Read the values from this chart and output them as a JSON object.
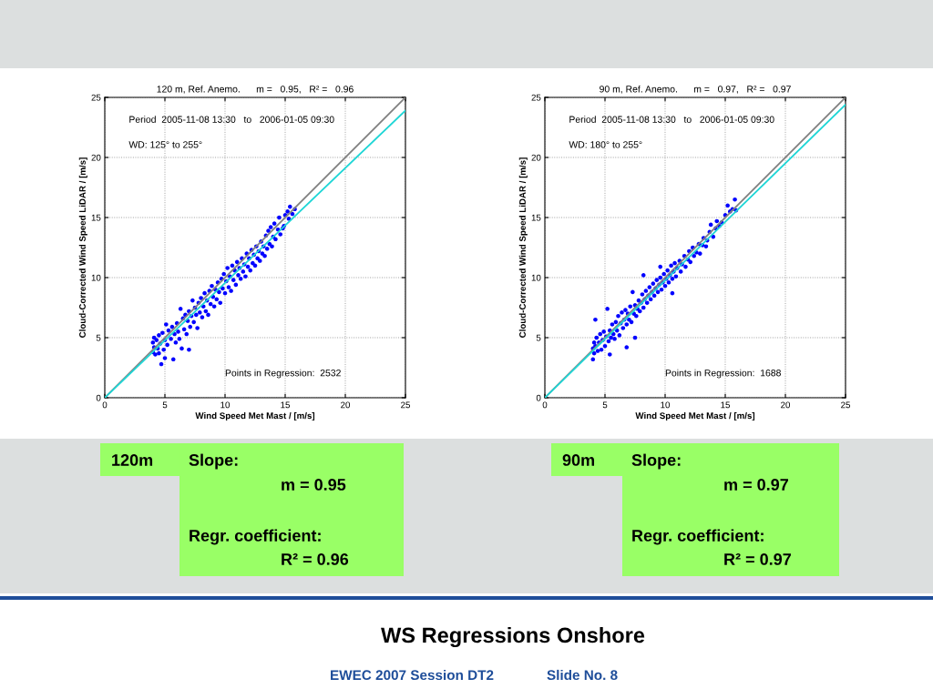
{
  "chart_data": [
    {
      "type": "scatter",
      "title": "120 m, Ref. Anemo.      m =   0.95,   R² =   0.96",
      "xlabel": "Wind Speed Met Mast / [m/s]",
      "ylabel": "Cloud-Corrected Wind Speed LiDAR / [m/s]",
      "xlim": [
        0,
        25
      ],
      "ylim": [
        0,
        25
      ],
      "xticks": [
        0,
        5,
        10,
        15,
        20,
        25
      ],
      "yticks": [
        0,
        5,
        10,
        15,
        20,
        25
      ],
      "grid": true,
      "annotations": [
        "Period  2005-11-08 13:30   to   2006-01-05 09:30",
        "WD: 125° to 255°",
        "Points in Regression:  2532"
      ],
      "series": [
        {
          "type": "scatter",
          "marker": "circle",
          "color": "#0000ff",
          "x": [
            4.0,
            4.0,
            4.1,
            4.1,
            4.2,
            4.3,
            4.4,
            4.5,
            4.5,
            4.6,
            4.7,
            4.8,
            4.9,
            5.0,
            5.0,
            5.1,
            5.2,
            5.3,
            5.5,
            5.6,
            5.7,
            5.8,
            5.9,
            6.0,
            6.1,
            6.2,
            6.3,
            6.4,
            6.5,
            6.6,
            6.7,
            6.8,
            6.9,
            7.0,
            7.0,
            7.1,
            7.2,
            7.3,
            7.4,
            7.5,
            7.6,
            7.7,
            7.8,
            7.9,
            8.0,
            8.1,
            8.2,
            8.3,
            8.4,
            8.5,
            8.6,
            8.7,
            8.8,
            8.9,
            9.0,
            9.1,
            9.2,
            9.3,
            9.4,
            9.5,
            9.6,
            9.7,
            9.8,
            9.9,
            10.0,
            10.1,
            10.2,
            10.3,
            10.4,
            10.5,
            10.6,
            10.7,
            10.8,
            10.9,
            11.0,
            11.1,
            11.2,
            11.3,
            11.4,
            11.5,
            11.6,
            11.7,
            11.8,
            11.9,
            12.0,
            12.1,
            12.2,
            12.3,
            12.4,
            12.5,
            12.6,
            12.7,
            12.8,
            12.9,
            13.0,
            13.1,
            13.2,
            13.3,
            13.4,
            13.5,
            13.6,
            13.7,
            13.8,
            13.9,
            14.0,
            14.1,
            14.2,
            14.4,
            14.5,
            14.6,
            14.8,
            14.9,
            15.0,
            15.2,
            15.3,
            15.4,
            15.6,
            15.8
          ],
          "values": [
            3.8,
            4.6,
            4.2,
            5.0,
            3.6,
            4.8,
            4.1,
            5.2,
            3.7,
            4.5,
            2.8,
            5.4,
            4.0,
            3.3,
            4.8,
            6.1,
            4.4,
            5.6,
            4.9,
            5.9,
            3.2,
            5.3,
            4.6,
            6.2,
            5.5,
            4.9,
            7.4,
            4.1,
            6.6,
            5.7,
            6.9,
            5.3,
            6.4,
            4.0,
            7.2,
            5.9,
            6.8,
            8.1,
            6.3,
            7.5,
            6.9,
            5.8,
            7.9,
            7.1,
            8.3,
            6.7,
            7.6,
            8.7,
            7.2,
            8.1,
            6.9,
            8.9,
            7.8,
            9.3,
            8.4,
            7.6,
            9.0,
            8.2,
            9.6,
            8.8,
            7.9,
            9.9,
            9.1,
            10.3,
            8.7,
            9.7,
            10.8,
            9.2,
            10.1,
            8.9,
            11.0,
            9.8,
            10.6,
            9.4,
            11.3,
            10.2,
            10.8,
            9.9,
            11.6,
            10.5,
            11.1,
            10.1,
            12.0,
            10.9,
            11.6,
            10.6,
            12.3,
            11.2,
            11.9,
            11.0,
            12.6,
            11.6,
            12.2,
            11.4,
            13.0,
            12.0,
            12.6,
            11.8,
            13.5,
            12.4,
            13.9,
            12.8,
            14.2,
            12.6,
            13.4,
            14.5,
            13.2,
            14.0,
            15.0,
            13.6,
            14.1,
            14.3,
            15.2,
            15.5,
            14.9,
            15.9,
            15.3,
            15.7
          ]
        },
        {
          "type": "line",
          "color": "#808080",
          "x": [
            0,
            25
          ],
          "values": [
            0,
            25
          ]
        },
        {
          "type": "line",
          "color": "#1fd6d6",
          "x": [
            0,
            25
          ],
          "values": [
            0,
            23.9
          ]
        }
      ]
    },
    {
      "type": "scatter",
      "title": "90 m, Ref. Anemo.      m =   0.97,   R² =   0.97",
      "xlabel": "Wind Speed Met Mast / [m/s]",
      "ylabel": "Cloud-Corrected Wind Speed LiDAR / [m/s]",
      "xlim": [
        0,
        25
      ],
      "ylim": [
        0,
        25
      ],
      "xticks": [
        0,
        5,
        10,
        15,
        20,
        25
      ],
      "yticks": [
        0,
        5,
        10,
        15,
        20,
        25
      ],
      "grid": true,
      "annotations": [
        "Period  2005-11-08 13:30   to   2006-01-05 09:30",
        "WD: 180° to 255°",
        "Points in Regression:  1688"
      ],
      "series": [
        {
          "type": "scatter",
          "marker": "circle",
          "color": "#0000ff",
          "x": [
            4.0,
            4.0,
            4.1,
            4.1,
            4.2,
            4.2,
            4.3,
            4.4,
            4.5,
            4.6,
            4.7,
            4.8,
            4.9,
            5.0,
            5.1,
            5.2,
            5.3,
            5.4,
            5.4,
            5.5,
            5.6,
            5.7,
            5.8,
            5.9,
            6.0,
            6.1,
            6.2,
            6.3,
            6.4,
            6.5,
            6.6,
            6.7,
            6.8,
            6.8,
            6.9,
            7.0,
            7.1,
            7.2,
            7.3,
            7.4,
            7.5,
            7.5,
            7.6,
            7.7,
            7.8,
            7.9,
            8.0,
            8.1,
            8.2,
            8.2,
            8.3,
            8.4,
            8.5,
            8.6,
            8.7,
            8.8,
            8.9,
            9.0,
            9.1,
            9.2,
            9.3,
            9.4,
            9.5,
            9.6,
            9.6,
            9.7,
            9.8,
            9.9,
            10.0,
            10.1,
            10.2,
            10.3,
            10.4,
            10.5,
            10.6,
            10.6,
            10.7,
            10.8,
            10.9,
            11.0,
            11.2,
            11.3,
            11.4,
            11.6,
            11.7,
            11.9,
            12.0,
            12.1,
            12.3,
            12.4,
            12.6,
            12.8,
            12.9,
            13.1,
            13.2,
            13.4,
            13.5,
            13.7,
            13.8,
            14.0,
            14.2,
            14.3,
            14.5,
            14.7,
            15.0,
            15.2,
            15.4,
            15.6,
            15.8,
            15.9
          ],
          "values": [
            3.2,
            4.1,
            4.6,
            3.7,
            6.5,
            4.3,
            5.0,
            3.9,
            4.6,
            5.3,
            4.0,
            4.8,
            5.5,
            4.3,
            5.1,
            7.4,
            4.7,
            3.6,
            5.6,
            5.0,
            6.1,
            5.3,
            4.9,
            6.3,
            5.6,
            6.8,
            5.2,
            6.2,
            7.1,
            5.8,
            6.5,
            7.3,
            4.2,
            6.1,
            7.0,
            6.5,
            7.6,
            6.3,
            8.8,
            7.0,
            5.0,
            7.7,
            6.8,
            7.4,
            8.1,
            7.2,
            7.9,
            8.6,
            10.2,
            7.5,
            8.2,
            8.9,
            7.9,
            8.5,
            9.2,
            8.2,
            8.8,
            9.5,
            8.5,
            9.1,
            9.8,
            8.8,
            9.4,
            10.9,
            10.0,
            9.0,
            9.6,
            10.3,
            9.3,
            9.9,
            10.6,
            9.6,
            10.2,
            11.0,
            8.7,
            9.9,
            10.5,
            11.2,
            10.1,
            10.8,
            11.4,
            10.5,
            11.1,
            11.8,
            10.9,
            11.5,
            12.2,
            11.3,
            12.5,
            11.8,
            12.1,
            12.8,
            12.0,
            12.7,
            13.3,
            12.6,
            13.1,
            13.8,
            14.4,
            13.4,
            14.1,
            14.7,
            14.3,
            14.6,
            15.2,
            16.0,
            15.5,
            15.7,
            16.5,
            15.6
          ]
        },
        {
          "type": "line",
          "color": "#808080",
          "x": [
            0,
            25
          ],
          "values": [
            0,
            25
          ]
        },
        {
          "type": "line",
          "color": "#1fd6d6",
          "x": [
            0,
            25
          ],
          "values": [
            0,
            24.4
          ]
        }
      ]
    },
    {
      "type": "other",
      "annotations": [
        "120m",
        "Slope:",
        "m = 0.95",
        "Regr. coefficient:",
        "R² = 0.96"
      ]
    },
    {
      "type": "other",
      "annotations": [
        "90m",
        "Slope:",
        "m = 0.97",
        "Regr. coefficient:",
        "R² = 0.97"
      ]
    },
    {
      "type": "other",
      "title": "WS Regressions Onshore",
      "annotations": [
        "EWEC 2007 Session DT2",
        "Slide No. 8"
      ]
    }
  ]
}
